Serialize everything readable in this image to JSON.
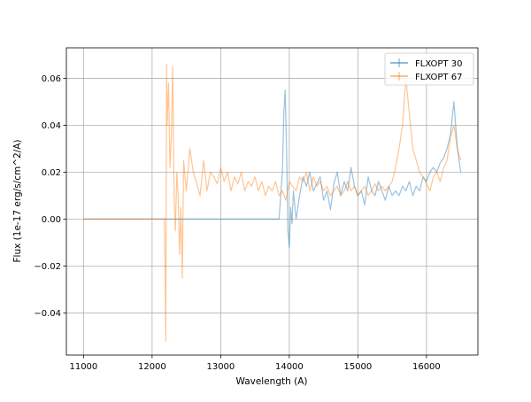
{
  "chart_data": {
    "type": "line",
    "title": "",
    "xlabel": "Wavelength (A)",
    "ylabel": "Flux (1e-17 erg/s/cm^2/A)",
    "xlim": [
      10750,
      16750
    ],
    "ylim": [
      -0.058,
      0.073
    ],
    "xticks": [
      11000,
      12000,
      13000,
      14000,
      15000,
      16000
    ],
    "xtick_labels": [
      "11000",
      "12000",
      "13000",
      "14000",
      "15000",
      "16000"
    ],
    "yticks": [
      -0.04,
      -0.02,
      0.0,
      0.02,
      0.04,
      0.06
    ],
    "ytick_labels": [
      "−0.04",
      "−0.02",
      "0.00",
      "0.02",
      "0.04",
      "0.06"
    ],
    "grid": true,
    "legend_position": "upper right",
    "series": [
      {
        "name": "FLXOPT 30",
        "color": "#1f77b4",
        "alpha": 0.45,
        "x": [
          11000,
          12000,
          13000,
          13850,
          13900,
          13920,
          13940,
          13960,
          13980,
          14000,
          14020,
          14040,
          14060,
          14100,
          14150,
          14200,
          14250,
          14300,
          14350,
          14400,
          14450,
          14500,
          14550,
          14600,
          14650,
          14700,
          14750,
          14800,
          14850,
          14900,
          14950,
          15000,
          15050,
          15100,
          15150,
          15200,
          15250,
          15300,
          15350,
          15400,
          15450,
          15500,
          15550,
          15600,
          15650,
          15700,
          15750,
          15800,
          15850,
          15900,
          15950,
          16000,
          16050,
          16100,
          16150,
          16200,
          16250,
          16300,
          16350,
          16400,
          16450,
          16500
        ],
        "y": [
          0.0,
          0.0,
          0.0,
          0.0,
          0.02,
          0.045,
          0.055,
          0.03,
          -0.005,
          -0.012,
          0.005,
          -0.002,
          0.012,
          0.0,
          0.01,
          0.018,
          0.014,
          0.02,
          0.012,
          0.015,
          0.018,
          0.008,
          0.012,
          0.004,
          0.015,
          0.02,
          0.01,
          0.016,
          0.012,
          0.022,
          0.014,
          0.01,
          0.012,
          0.006,
          0.018,
          0.012,
          0.01,
          0.016,
          0.012,
          0.008,
          0.014,
          0.01,
          0.012,
          0.01,
          0.014,
          0.012,
          0.016,
          0.01,
          0.014,
          0.012,
          0.018,
          0.016,
          0.02,
          0.022,
          0.02,
          0.024,
          0.026,
          0.03,
          0.036,
          0.05,
          0.03,
          0.02
        ]
      },
      {
        "name": "FLXOPT 67",
        "color": "#ff7f0e",
        "alpha": 0.45,
        "x": [
          11000,
          12000,
          12180,
          12200,
          12210,
          12220,
          12240,
          12260,
          12280,
          12300,
          12320,
          12340,
          12360,
          12380,
          12400,
          12420,
          12440,
          12460,
          12480,
          12500,
          12550,
          12600,
          12650,
          12700,
          12750,
          12800,
          12850,
          12900,
          12950,
          13000,
          13050,
          13100,
          13150,
          13200,
          13250,
          13300,
          13350,
          13400,
          13450,
          13500,
          13550,
          13600,
          13650,
          13700,
          13750,
          13800,
          13850,
          13900,
          13950,
          14000,
          14050,
          14100,
          14150,
          14200,
          14250,
          14300,
          14350,
          14400,
          14450,
          14500,
          14550,
          14600,
          14650,
          14700,
          14750,
          14800,
          14850,
          14900,
          14950,
          15000,
          15050,
          15100,
          15150,
          15200,
          15250,
          15300,
          15350,
          15400,
          15450,
          15500,
          15550,
          15600,
          15650,
          15700,
          15750,
          15800,
          15850,
          15900,
          15950,
          16000,
          16050,
          16100,
          16150,
          16200,
          16250,
          16300,
          16350,
          16400,
          16450,
          16500
        ],
        "y": [
          0.0,
          0.0,
          0.0,
          -0.052,
          0.066,
          0.04,
          0.058,
          0.022,
          0.035,
          0.065,
          0.01,
          -0.005,
          0.02,
          0.01,
          -0.015,
          0.005,
          -0.025,
          0.025,
          0.018,
          0.012,
          0.03,
          0.02,
          0.015,
          0.01,
          0.025,
          0.012,
          0.02,
          0.018,
          0.015,
          0.022,
          0.016,
          0.02,
          0.012,
          0.018,
          0.015,
          0.02,
          0.012,
          0.016,
          0.014,
          0.018,
          0.012,
          0.016,
          0.01,
          0.014,
          0.012,
          0.016,
          0.01,
          0.012,
          0.008,
          0.016,
          0.014,
          0.012,
          0.018,
          0.016,
          0.02,
          0.012,
          0.018,
          0.014,
          0.016,
          0.012,
          0.014,
          0.01,
          0.012,
          0.014,
          0.01,
          0.012,
          0.016,
          0.012,
          0.014,
          0.01,
          0.012,
          0.014,
          0.01,
          0.012,
          0.015,
          0.012,
          0.014,
          0.012,
          0.014,
          0.016,
          0.022,
          0.03,
          0.04,
          0.06,
          0.045,
          0.03,
          0.025,
          0.02,
          0.018,
          0.015,
          0.012,
          0.018,
          0.02,
          0.016,
          0.022,
          0.025,
          0.035,
          0.04,
          0.03,
          0.025
        ]
      }
    ]
  }
}
